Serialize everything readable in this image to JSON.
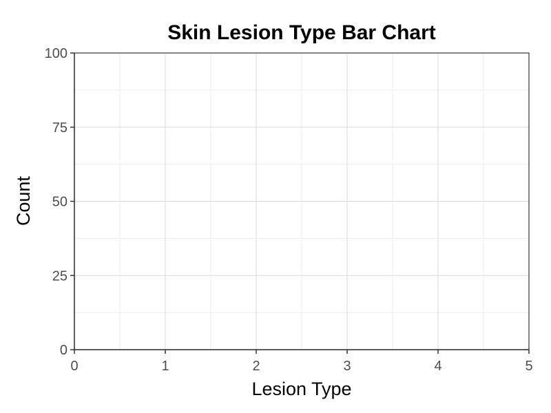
{
  "chart_data": {
    "type": "bar",
    "title": "Skin Lesion Type Bar Chart",
    "xlabel": "Lesion Type",
    "ylabel": "Count",
    "categories": [],
    "values": [],
    "xlim": [
      0,
      5
    ],
    "ylim": [
      0,
      100
    ],
    "x_ticks": [
      0,
      1,
      2,
      3,
      4,
      5
    ],
    "y_ticks": [
      0,
      25,
      50,
      75,
      100
    ],
    "x_tick_labels": [
      "0",
      "1",
      "2",
      "3",
      "4",
      "5"
    ],
    "y_tick_labels": [
      "0",
      "25",
      "50",
      "75",
      "100"
    ],
    "grid": true,
    "legend": "none",
    "colors": {
      "background": "#ffffff",
      "grid_major": "#d9d9d9",
      "grid_minor": "#ececec",
      "axis": "#333333",
      "tick_label": "#4d4d4d",
      "text": "#000000"
    }
  }
}
